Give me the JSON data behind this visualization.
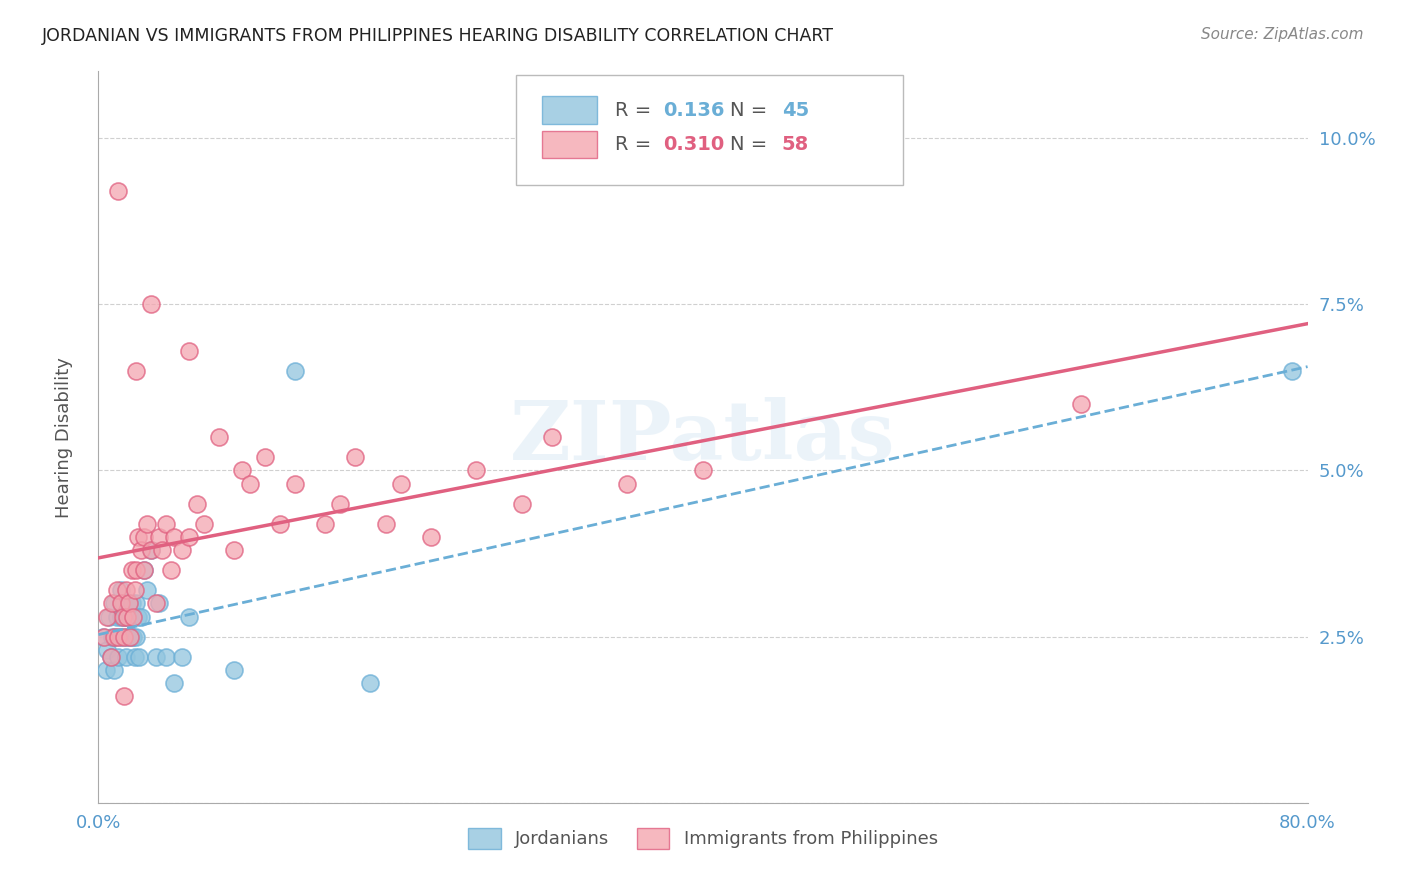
{
  "title": "JORDANIAN VS IMMIGRANTS FROM PHILIPPINES HEARING DISABILITY CORRELATION CHART",
  "source": "Source: ZipAtlas.com",
  "ylabel": "Hearing Disability",
  "legend_labels": [
    "Jordanians",
    "Immigrants from Philippines"
  ],
  "blue_R_val": "0.136",
  "blue_N_val": "45",
  "pink_R_val": "0.310",
  "pink_N_val": "58",
  "xlim": [
    0.0,
    0.8
  ],
  "ylim": [
    0.0,
    0.11
  ],
  "yticks": [
    0.0,
    0.025,
    0.05,
    0.075,
    0.1
  ],
  "ytick_labels": [
    "",
    "2.5%",
    "5.0%",
    "7.5%",
    "10.0%"
  ],
  "xticks": [
    0.0,
    0.16,
    0.32,
    0.48,
    0.64,
    0.8
  ],
  "xtick_labels": [
    "0.0%",
    "",
    "",
    "",
    "",
    "80.0%"
  ],
  "blue_scatter_color": "#92c5de",
  "pink_scatter_color": "#f4a6b0",
  "blue_line_color": "#6aaed6",
  "pink_line_color": "#e06080",
  "grid_color": "#d0d0d0",
  "axis_tick_color": "#5599cc",
  "background_color": "#ffffff",
  "watermark": "ZIPatlas",
  "blue_scatter_x": [
    0.003,
    0.005,
    0.006,
    0.007,
    0.008,
    0.009,
    0.01,
    0.01,
    0.011,
    0.012,
    0.013,
    0.014,
    0.015,
    0.015,
    0.016,
    0.016,
    0.017,
    0.018,
    0.018,
    0.019,
    0.02,
    0.02,
    0.021,
    0.022,
    0.022,
    0.023,
    0.024,
    0.025,
    0.025,
    0.026,
    0.027,
    0.028,
    0.03,
    0.032,
    0.035,
    0.038,
    0.04,
    0.045,
    0.05,
    0.055,
    0.06,
    0.09,
    0.13,
    0.18,
    0.79
  ],
  "blue_scatter_y": [
    0.025,
    0.02,
    0.023,
    0.028,
    0.022,
    0.025,
    0.02,
    0.03,
    0.025,
    0.028,
    0.022,
    0.025,
    0.028,
    0.032,
    0.025,
    0.03,
    0.028,
    0.022,
    0.028,
    0.025,
    0.03,
    0.025,
    0.028,
    0.025,
    0.03,
    0.025,
    0.022,
    0.03,
    0.025,
    0.028,
    0.022,
    0.028,
    0.035,
    0.032,
    0.038,
    0.022,
    0.03,
    0.022,
    0.018,
    0.022,
    0.028,
    0.02,
    0.065,
    0.018,
    0.065
  ],
  "pink_scatter_x": [
    0.004,
    0.006,
    0.008,
    0.009,
    0.01,
    0.012,
    0.013,
    0.015,
    0.016,
    0.017,
    0.018,
    0.019,
    0.02,
    0.021,
    0.022,
    0.023,
    0.024,
    0.025,
    0.026,
    0.028,
    0.03,
    0.03,
    0.032,
    0.035,
    0.038,
    0.04,
    0.042,
    0.045,
    0.048,
    0.05,
    0.055,
    0.06,
    0.065,
    0.07,
    0.08,
    0.09,
    0.095,
    0.1,
    0.11,
    0.12,
    0.13,
    0.15,
    0.16,
    0.17,
    0.19,
    0.2,
    0.22,
    0.25,
    0.28,
    0.3,
    0.35,
    0.4,
    0.013,
    0.06,
    0.035,
    0.025,
    0.017,
    0.65
  ],
  "pink_scatter_y": [
    0.025,
    0.028,
    0.022,
    0.03,
    0.025,
    0.032,
    0.025,
    0.03,
    0.028,
    0.025,
    0.032,
    0.028,
    0.03,
    0.025,
    0.035,
    0.028,
    0.032,
    0.035,
    0.04,
    0.038,
    0.035,
    0.04,
    0.042,
    0.038,
    0.03,
    0.04,
    0.038,
    0.042,
    0.035,
    0.04,
    0.038,
    0.04,
    0.045,
    0.042,
    0.055,
    0.038,
    0.05,
    0.048,
    0.052,
    0.042,
    0.048,
    0.042,
    0.045,
    0.052,
    0.042,
    0.048,
    0.04,
    0.05,
    0.045,
    0.055,
    0.048,
    0.05,
    0.092,
    0.068,
    0.075,
    0.065,
    0.016,
    0.06
  ]
}
